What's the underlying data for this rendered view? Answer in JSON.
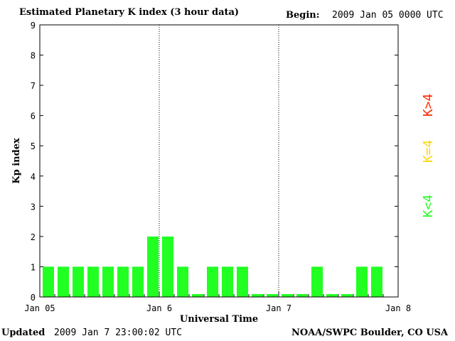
{
  "header": {
    "title": "Estimated Planetary K index (3 hour data)",
    "begin_label": "Begin:",
    "begin_value": "2009 Jan 05 0000 UTC"
  },
  "footer": {
    "updated_label": "Updated",
    "updated_value": "2009 Jan  7 23:00:02 UTC",
    "credit": "NOAA/SWPC Boulder, CO USA"
  },
  "colors": {
    "low": "#22ff22",
    "mid": "#ffd700",
    "high": "#ff2a00"
  },
  "chart_data": {
    "type": "bar",
    "title": "Estimated Planetary K index (3 hour data)",
    "xlabel": "Universal Time",
    "ylabel": "Kp index",
    "ylim": [
      0,
      9
    ],
    "yticks": [
      "0",
      "1",
      "2",
      "3",
      "4",
      "5",
      "6",
      "7",
      "8",
      "9"
    ],
    "xticks": [
      "Jan 05",
      "Jan 6",
      "Jan 7",
      "Jan 8"
    ],
    "legend": [
      "K<4",
      "K=4",
      "K>4"
    ],
    "legend_position": "right",
    "bins_per_day": 8,
    "values": [
      1,
      1,
      1,
      1,
      1,
      1,
      1,
      2,
      2,
      1,
      0,
      1,
      1,
      1,
      0,
      0,
      0,
      0,
      1,
      0,
      0,
      1,
      1
    ]
  }
}
